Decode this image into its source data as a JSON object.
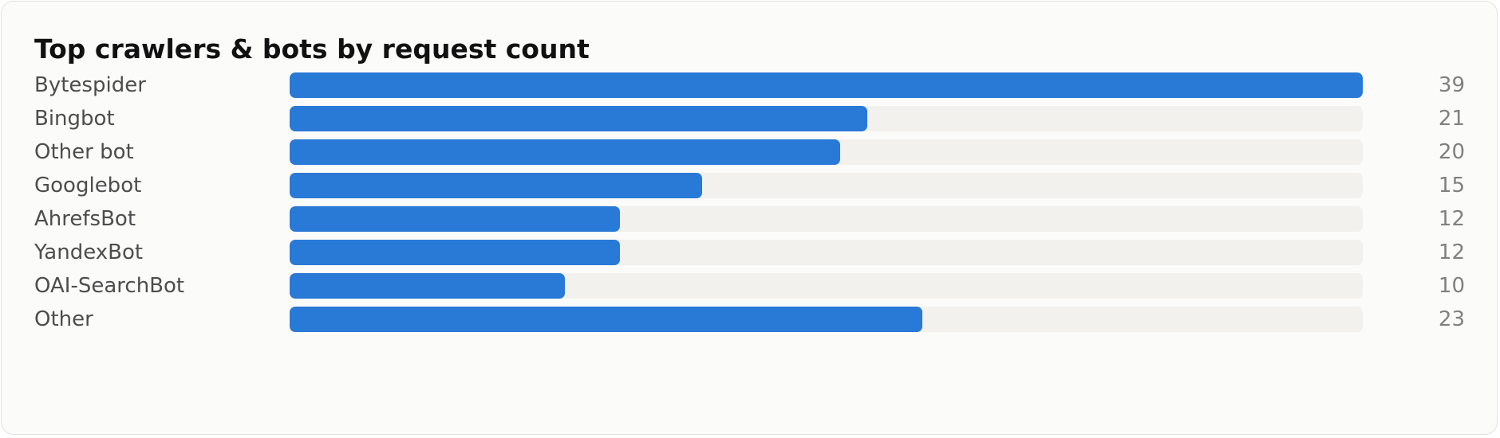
{
  "chart_data": {
    "type": "bar",
    "orientation": "horizontal",
    "title": "Top crawlers & bots by request count",
    "categories": [
      "Bytespider",
      "Bingbot",
      "Other bot",
      "Googlebot",
      "AhrefsBot",
      "YandexBot",
      "OAI-SearchBot",
      "Other"
    ],
    "values": [
      39,
      21,
      20,
      15,
      12,
      12,
      10,
      23
    ],
    "xlim": [
      0,
      39
    ],
    "grid": false,
    "bar_color": "#2979d7",
    "track_color": "#f2f1ed"
  }
}
